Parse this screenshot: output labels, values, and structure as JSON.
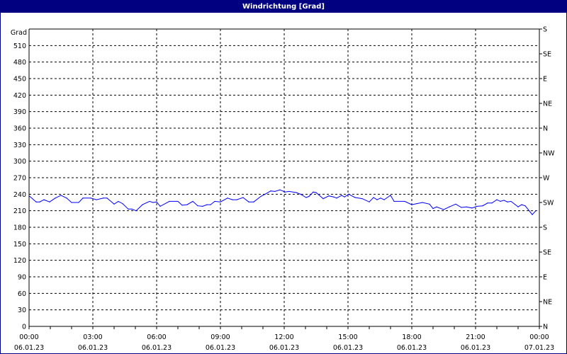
{
  "window": {
    "title": "Windrichtung [Grad]"
  },
  "chart_data": {
    "type": "line",
    "title": "Windrichtung [Grad]",
    "ylabel": "Grad",
    "ylim": [
      0,
      540
    ],
    "y_ticks": [
      0,
      30,
      60,
      90,
      120,
      150,
      180,
      210,
      240,
      270,
      300,
      330,
      360,
      390,
      420,
      450,
      480,
      510
    ],
    "right_axis_labels": [
      {
        "value": 0,
        "label": "N"
      },
      {
        "value": 45,
        "label": "NE"
      },
      {
        "value": 90,
        "label": "E"
      },
      {
        "value": 135,
        "label": "SE"
      },
      {
        "value": 180,
        "label": "S"
      },
      {
        "value": 225,
        "label": "SW"
      },
      {
        "value": 270,
        "label": "W"
      },
      {
        "value": 315,
        "label": "NW"
      },
      {
        "value": 360,
        "label": "N"
      },
      {
        "value": 405,
        "label": "NE"
      },
      {
        "value": 450,
        "label": "E"
      },
      {
        "value": 495,
        "label": "SE"
      },
      {
        "value": 540,
        "label": "S"
      }
    ],
    "x_ticks": [
      {
        "time": "00:00",
        "date": "06.01.23"
      },
      {
        "time": "03:00",
        "date": "06.01.23"
      },
      {
        "time": "06:00",
        "date": "06.01.23"
      },
      {
        "time": "09:00",
        "date": "06.01.23"
      },
      {
        "time": "12:00",
        "date": "06.01.23"
      },
      {
        "time": "15:00",
        "date": "06.01.23"
      },
      {
        "time": "18:00",
        "date": "06.01.23"
      },
      {
        "time": "21:00",
        "date": "06.01.23"
      },
      {
        "time": "00:00",
        "date": "07.01.23"
      }
    ],
    "xlim": [
      "06.01.23 00:00",
      "07.01.23 00:00"
    ],
    "grid": true,
    "line_color": "#0000ff",
    "x": [
      "00:02",
      "00:20",
      "00:30",
      "00:42",
      "00:58",
      "01:14",
      "01:30",
      "01:46",
      "02:00",
      "02:20",
      "02:32",
      "02:54",
      "03:10",
      "03:30",
      "03:40",
      "04:00",
      "04:12",
      "04:24",
      "04:40",
      "04:50",
      "05:02",
      "05:20",
      "05:40",
      "05:50",
      "06:00",
      "06:10",
      "06:36",
      "07:00",
      "07:12",
      "07:26",
      "07:42",
      "07:56",
      "08:10",
      "08:22",
      "08:32",
      "08:44",
      "09:00",
      "09:20",
      "09:34",
      "09:46",
      "10:04",
      "10:20",
      "10:34",
      "10:54",
      "11:06",
      "11:22",
      "11:34",
      "11:48",
      "12:02",
      "12:14",
      "12:34",
      "12:46",
      "13:02",
      "13:10",
      "13:22",
      "13:30",
      "13:50",
      "14:06",
      "14:20",
      "14:28",
      "14:42",
      "14:50",
      "15:02",
      "15:20",
      "15:40",
      "16:00",
      "16:12",
      "16:22",
      "16:32",
      "16:42",
      "17:00",
      "17:10",
      "17:40",
      "18:00",
      "18:14",
      "18:30",
      "18:50",
      "19:00",
      "19:10",
      "19:30",
      "19:46",
      "20:04",
      "20:20",
      "20:34",
      "20:50",
      "21:04",
      "21:20",
      "21:34",
      "21:46",
      "22:00",
      "22:10",
      "22:20",
      "22:30",
      "22:40",
      "23:00",
      "23:10",
      "23:20",
      "23:40",
      "23:50"
    ],
    "values": [
      236,
      226,
      226,
      230,
      226,
      233,
      238,
      233,
      225,
      225,
      233,
      233,
      230,
      233,
      233,
      222,
      227,
      223,
      213,
      213,
      210,
      221,
      227,
      225,
      226,
      218,
      227,
      227,
      220,
      221,
      227,
      219,
      218,
      221,
      221,
      227,
      226,
      233,
      230,
      230,
      234,
      226,
      226,
      236,
      240,
      246,
      245,
      248,
      244,
      245,
      243,
      240,
      234,
      236,
      244,
      243,
      232,
      237,
      235,
      233,
      238,
      235,
      240,
      234,
      232,
      226,
      234,
      230,
      233,
      230,
      238,
      227,
      227,
      221,
      223,
      225,
      222,
      214,
      217,
      212,
      217,
      222,
      216,
      217,
      215,
      218,
      219,
      224,
      224,
      230,
      227,
      229,
      226,
      227,
      217,
      221,
      219,
      203,
      210
    ]
  }
}
